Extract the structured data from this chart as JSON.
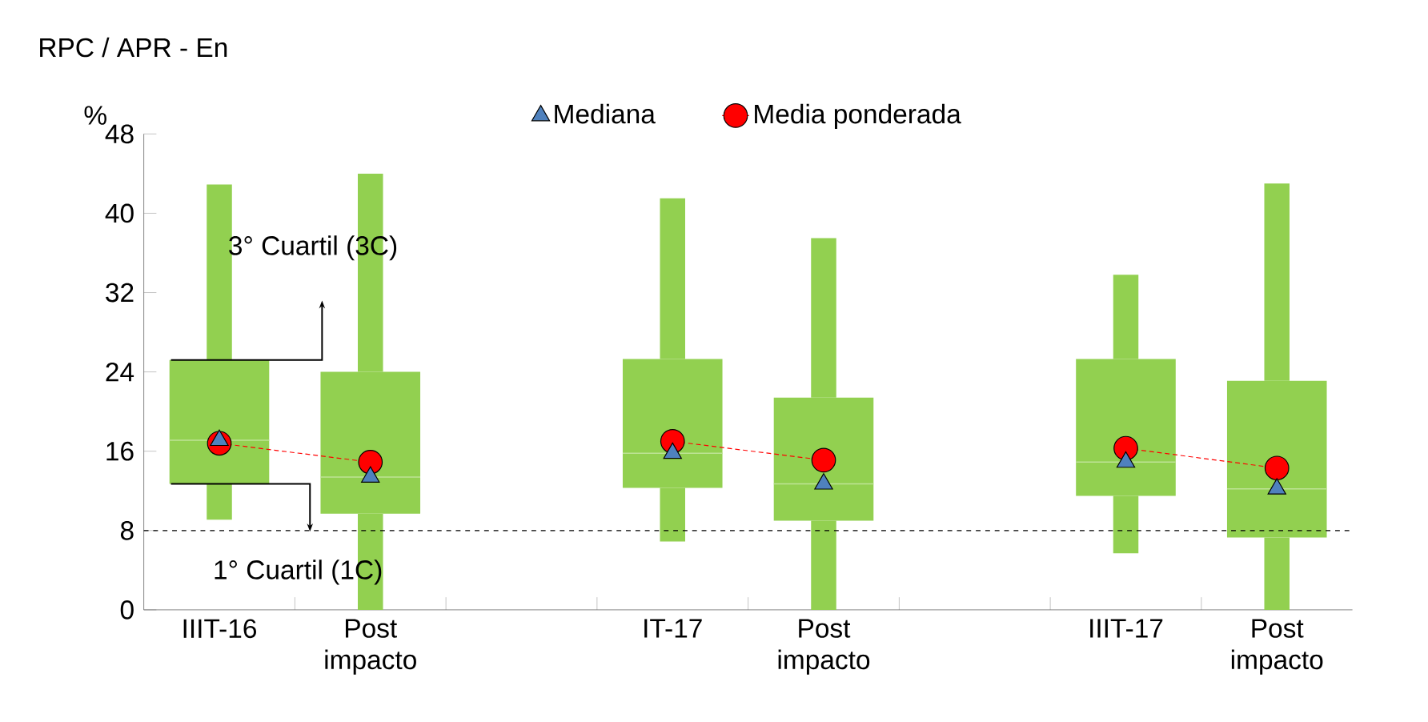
{
  "chart_data": {
    "type": "box",
    "subtitle": "RPC / APR - En",
    "ylabel": "%",
    "categories": [
      "IIIT-16",
      "Post impacto",
      null,
      "IT-17",
      "Post impacto",
      null,
      "IIIT-17",
      "Post impacto"
    ],
    "color": "#92d050",
    "boxes": [
      {
        "low": 9.1,
        "q1": 12.7,
        "median": 17.1,
        "q3": 25.2,
        "high": 42.9
      },
      {
        "low": 0,
        "q1": 9.7,
        "median": 13.4,
        "q3": 24.0,
        "high": 44.0
      },
      null,
      {
        "low": 6.9,
        "q1": 12.3,
        "median": 15.8,
        "q3": 25.3,
        "high": 41.5
      },
      {
        "low": 0,
        "q1": 9.0,
        "median": 12.7,
        "q3": 21.4,
        "high": 37.5
      },
      null,
      {
        "low": 5.7,
        "q1": 11.5,
        "median": 14.9,
        "q3": 25.3,
        "high": 33.8
      },
      {
        "low": 0,
        "q1": 7.3,
        "median": 12.2,
        "q3": 23.1,
        "high": 43.0
      }
    ],
    "series": [
      {
        "name": "Mediana",
        "type": "scatter",
        "marker": "triangle",
        "color": "#4f81bd",
        "values": [
          17.1,
          13.4,
          null,
          15.8,
          12.7,
          null,
          14.9,
          12.2
        ]
      },
      {
        "name": "Media ponderada",
        "type": "line",
        "marker": "circle",
        "line_style": "dashed",
        "color": "#ff0000",
        "values": [
          16.8,
          14.9,
          null,
          17.0,
          15.1,
          null,
          16.3,
          14.3
        ]
      }
    ],
    "ylim": [
      0,
      48
    ],
    "yticks": [
      0,
      8,
      16,
      24,
      32,
      40,
      48
    ],
    "ref_lines": [
      {
        "axis": "y",
        "value": 8,
        "line_style": "dashed",
        "color": "#000000"
      }
    ],
    "annotations": [
      "3° Cuartil (3C)",
      "1° Cuartil (1C)"
    ],
    "legend": "top"
  }
}
